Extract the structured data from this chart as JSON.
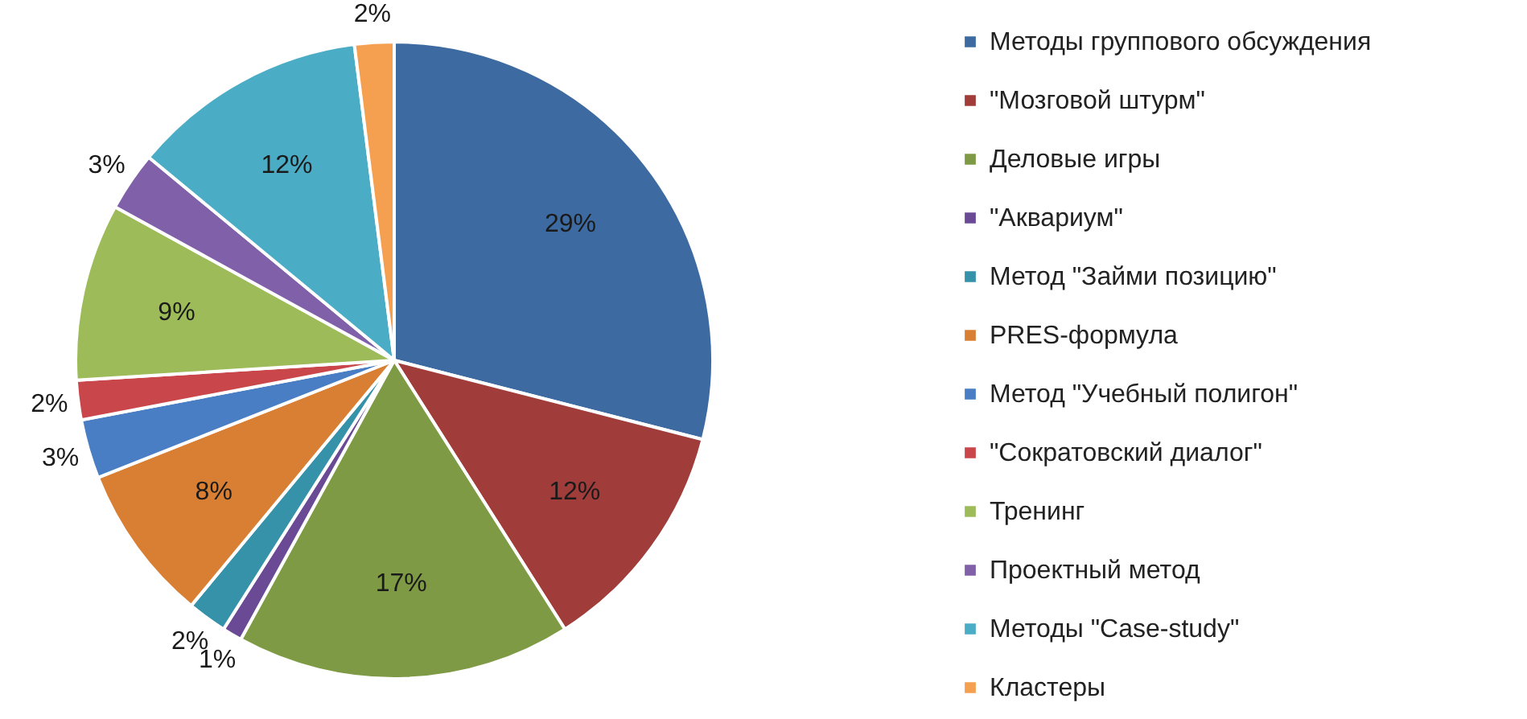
{
  "chart_data": {
    "type": "pie",
    "categories": [
      "Методы группового обсуждения",
      "\"Мозговой штурм\"",
      "Деловые игры",
      "\"Аквариум\"",
      "Метод \"Займи позицию\"",
      "PRES-формула",
      "Метод \"Учебный полигон\"",
      "\"Сократовский диалог\"",
      "Тренинг",
      "Проектный метод",
      "Методы \"Case-study\"",
      "Кластеры"
    ],
    "values": [
      29,
      12,
      17,
      1,
      2,
      8,
      3,
      2,
      9,
      3,
      12,
      2
    ],
    "value_labels": [
      "29%",
      "12%",
      "17%",
      "1%",
      "2%",
      "8%",
      "3%",
      "2%",
      "9%",
      "3%",
      "12%",
      "2%"
    ],
    "colors": [
      "#3d6aa0",
      "#a03c3a",
      "#7f9a45",
      "#6a4a95",
      "#3592a8",
      "#d97f33",
      "#4a7ec4",
      "#c9464a",
      "#9dbb59",
      "#8060a8",
      "#4bacc6",
      "#f5a050"
    ],
    "legend": "right"
  }
}
